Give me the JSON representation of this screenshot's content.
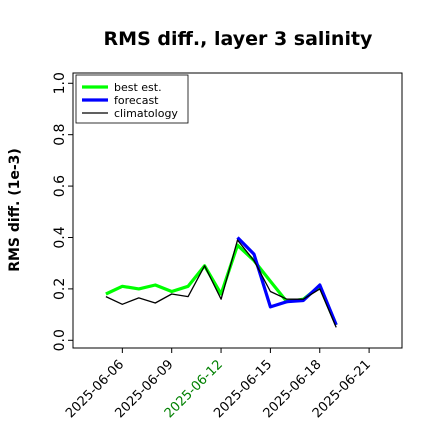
{
  "colors": {
    "best_est": "#00ff00",
    "forecast": "#0000ff",
    "climatology": "#000000",
    "highlight_tick": "#008000"
  },
  "chart_data": {
    "type": "line",
    "title": "RMS diff., layer 3 salinity",
    "xlabel": "",
    "ylabel": "RMS diff. (1e-3)",
    "ylim": [
      -0.03,
      1.04
    ],
    "yticks": [
      0.0,
      0.2,
      0.4,
      0.6,
      0.8,
      1.0
    ],
    "ytick_labels": [
      "0.0",
      "0.2",
      "0.4",
      "0.6",
      "0.8",
      "1.0"
    ],
    "x_dates": [
      "2025-06-05",
      "2025-06-06",
      "2025-06-07",
      "2025-06-08",
      "2025-06-09",
      "2025-06-10",
      "2025-06-11",
      "2025-06-12",
      "2025-06-13",
      "2025-06-14",
      "2025-06-15",
      "2025-06-16",
      "2025-06-17",
      "2025-06-18",
      "2025-06-19"
    ],
    "xlim": [
      "2025-06-03",
      "2025-06-23"
    ],
    "xticks": [
      "2025-06-06",
      "2025-06-09",
      "2025-06-12",
      "2025-06-15",
      "2025-06-18",
      "2025-06-21"
    ],
    "xtick_labels": [
      "2025-06-06",
      "2025-06-09",
      "2025-06-12",
      "2025-06-15",
      "2025-06-18",
      "2025-06-21"
    ],
    "highlight_xtick": "2025-06-12",
    "legend_position": "top-left",
    "grid": false,
    "series": [
      {
        "name": "best est.",
        "color": "#00ff00",
        "values": [
          0.18,
          0.21,
          0.2,
          0.215,
          0.19,
          0.21,
          0.29,
          0.18,
          0.37,
          0.31,
          0.23,
          0.15,
          0.16,
          0.21,
          0.06
        ]
      },
      {
        "name": "forecast",
        "color": "#0000ff",
        "values": [
          null,
          null,
          null,
          null,
          null,
          null,
          null,
          null,
          0.4,
          0.335,
          0.13,
          0.15,
          0.155,
          0.215,
          0.06
        ]
      },
      {
        "name": "climatology",
        "color": "#000000",
        "values": [
          0.17,
          0.14,
          0.165,
          0.145,
          0.18,
          0.17,
          0.29,
          0.16,
          0.39,
          0.31,
          0.19,
          0.16,
          0.16,
          0.2,
          0.05
        ]
      }
    ]
  }
}
